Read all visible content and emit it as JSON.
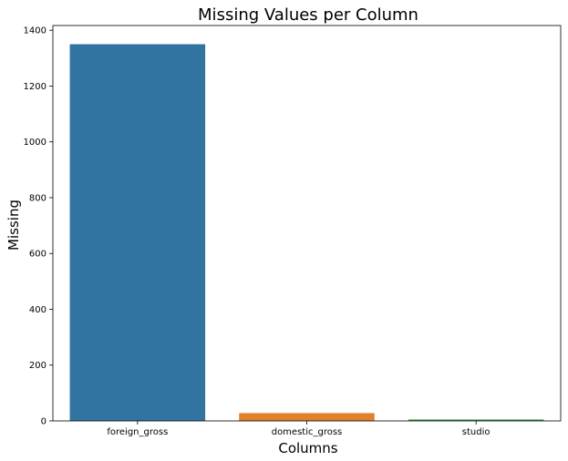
{
  "chart_data": {
    "type": "bar",
    "title": "Missing Values per Column",
    "xlabel": "Columns",
    "ylabel": "Missing",
    "categories": [
      "foreign_gross",
      "domestic_gross",
      "studio"
    ],
    "values": [
      1350,
      28,
      5
    ],
    "colors": [
      "#3274a1",
      "#e1812c",
      "#3a923a"
    ],
    "ylim": [
      0,
      1417
    ],
    "yticks": [
      0,
      200,
      400,
      600,
      800,
      1000,
      1200,
      1400
    ],
    "grid": false,
    "legend": "none"
  }
}
